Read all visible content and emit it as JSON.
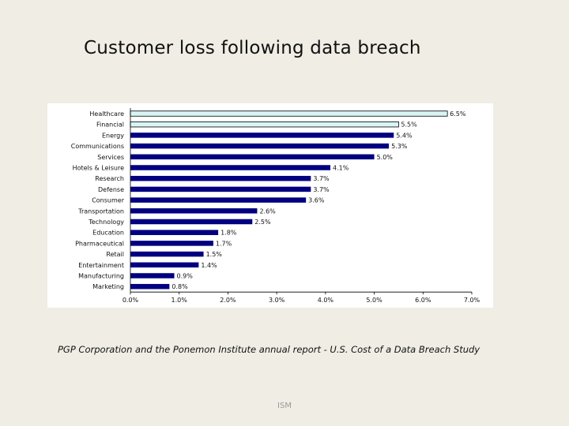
{
  "slide": {
    "title": "Customer loss following data breach",
    "caption": "PGP Corporation and the Ponemon Institute annual report - U.S. Cost of a Data Breach Study",
    "footer": "ISM"
  },
  "chart_data": {
    "type": "bar",
    "orientation": "horizontal",
    "categories": [
      "Healthcare",
      "Financial",
      "Energy",
      "Communications",
      "Services",
      "Hotels & Leisure",
      "Research",
      "Defense",
      "Consumer",
      "Transportation",
      "Technology",
      "Education",
      "Pharmaceutical",
      "Retail",
      "Entertainment",
      "Manufacturing",
      "Marketing"
    ],
    "values": [
      6.5,
      5.5,
      5.4,
      5.3,
      5.0,
      4.1,
      3.7,
      3.7,
      3.6,
      2.6,
      2.5,
      1.8,
      1.7,
      1.5,
      1.4,
      0.9,
      0.8
    ],
    "data_labels": [
      "6.5%",
      "5.5%",
      "5.4%",
      "5.3%",
      "5.0%",
      "4.1%",
      "3.7%",
      "3.7%",
      "3.6%",
      "2.6%",
      "2.5%",
      "1.8%",
      "1.7%",
      "1.5%",
      "1.4%",
      "0.9%",
      "0.8%"
    ],
    "highlighted": [
      "Healthcare",
      "Financial"
    ],
    "colors": {
      "bar": "#000080",
      "highlight": "#d9f4f4",
      "outline": "#000000"
    },
    "xlim": [
      0,
      7
    ],
    "xticks": [
      0,
      1,
      2,
      3,
      4,
      5,
      6,
      7
    ],
    "xtick_labels": [
      "0.0%",
      "1.0%",
      "2.0%",
      "3.0%",
      "4.0%",
      "5.0%",
      "6.0%",
      "7.0%"
    ],
    "title": "",
    "xlabel": "",
    "ylabel": "",
    "grid": false,
    "legend": "none"
  }
}
